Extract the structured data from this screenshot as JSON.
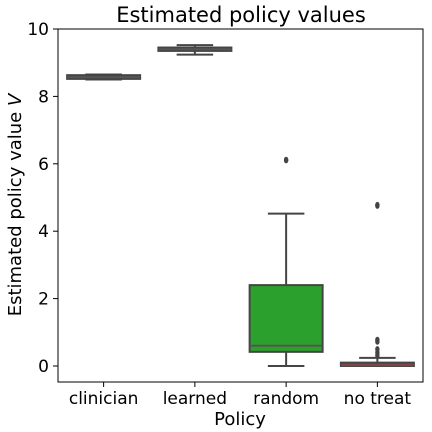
{
  "chart_data": {
    "type": "box",
    "title": "Estimated policy values",
    "xlabel": "Policy",
    "ylabel": "Estimated policy value V",
    "ylabel_parts": {
      "text": "Estimated policy value ",
      "symbol": "V"
    },
    "ylim": [
      -0.3,
      10
    ],
    "yticks": [
      0,
      2,
      4,
      6,
      8,
      10
    ],
    "categories": [
      "clinician",
      "learned",
      "random",
      "no treat"
    ],
    "boxes": [
      {
        "name": "clinician",
        "color": "#555555",
        "median_color": "#555555",
        "whisker_low": 8.5,
        "q1": 8.52,
        "median": 8.57,
        "q3": 8.63,
        "whisker_high": 8.65,
        "outliers": []
      },
      {
        "name": "learned",
        "color": "#555555",
        "median_color": "#555555",
        "whisker_low": 9.24,
        "q1": 9.35,
        "median": 9.4,
        "q3": 9.45,
        "whisker_high": 9.52,
        "outliers": []
      },
      {
        "name": "random",
        "color": "#2ca02c",
        "median_color": "#555555",
        "whisker_low": 0.0,
        "q1": 0.42,
        "median": 0.6,
        "q3": 2.4,
        "whisker_high": 4.52,
        "outliers": [
          6.1,
          6.12
        ]
      },
      {
        "name": "no treat",
        "color": "#d62728",
        "median_color": "#555555",
        "whisker_low": 0.0,
        "q1": 0.0,
        "median": 0.02,
        "q3": 0.1,
        "whisker_high": 0.24,
        "outliers": [
          0.32,
          0.4,
          0.5,
          0.72,
          0.78,
          4.75,
          4.78
        ]
      }
    ],
    "grid": false,
    "legend": "none"
  }
}
